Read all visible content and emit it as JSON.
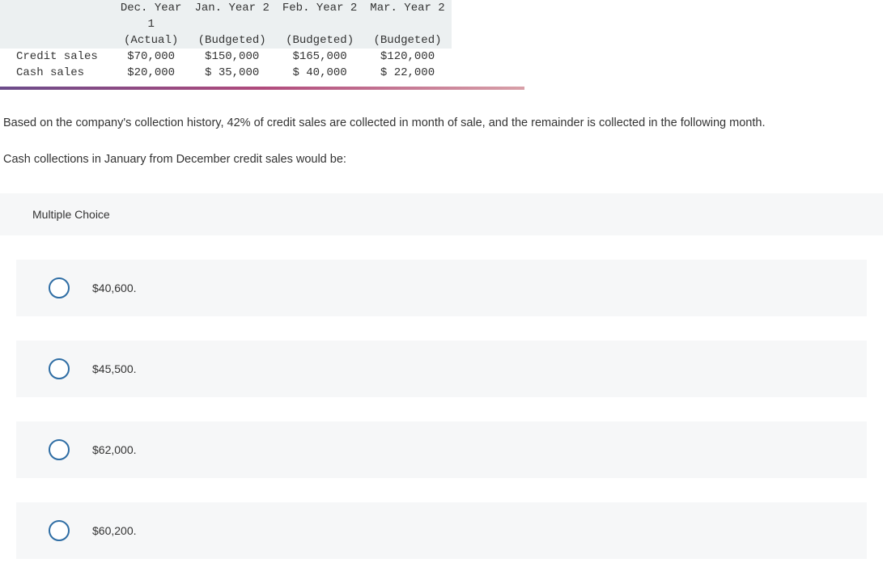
{
  "table": {
    "columns": [
      {
        "line1": "",
        "line2": "",
        "line3": ""
      },
      {
        "line1": "Dec. Year",
        "line2": "1",
        "line3": "(Actual)"
      },
      {
        "line1": "Jan. Year 2",
        "line2": "",
        "line3": "(Budgeted)"
      },
      {
        "line1": "Feb. Year 2",
        "line2": "",
        "line3": "(Budgeted)"
      },
      {
        "line1": "Mar. Year 2",
        "line2": "",
        "line3": "(Budgeted)"
      }
    ],
    "rows": [
      {
        "label": "Credit sales",
        "c1": "$70,000",
        "c2": "$150,000",
        "c3": "$165,000",
        "c4": "$120,000"
      },
      {
        "label": "Cash sales",
        "c1": "$20,000",
        "c2": "$ 35,000",
        "c3": "$ 40,000",
        "c4": "$ 22,000"
      }
    ],
    "header_bg": "#ecf0f1"
  },
  "question": {
    "p1": "Based on the company's collection history, 42% of credit sales are collected in month of sale, and the remainder is collected in the following month.",
    "p2": "Cash collections in January from December credit sales would be:"
  },
  "mc": {
    "header": "Multiple Choice",
    "options": [
      {
        "label": "$40,600."
      },
      {
        "label": "$45,500."
      },
      {
        "label": "$62,000."
      },
      {
        "label": "$60,200."
      }
    ],
    "radio_border_color": "#2e6da4",
    "option_bg": "#f6f7f8"
  }
}
